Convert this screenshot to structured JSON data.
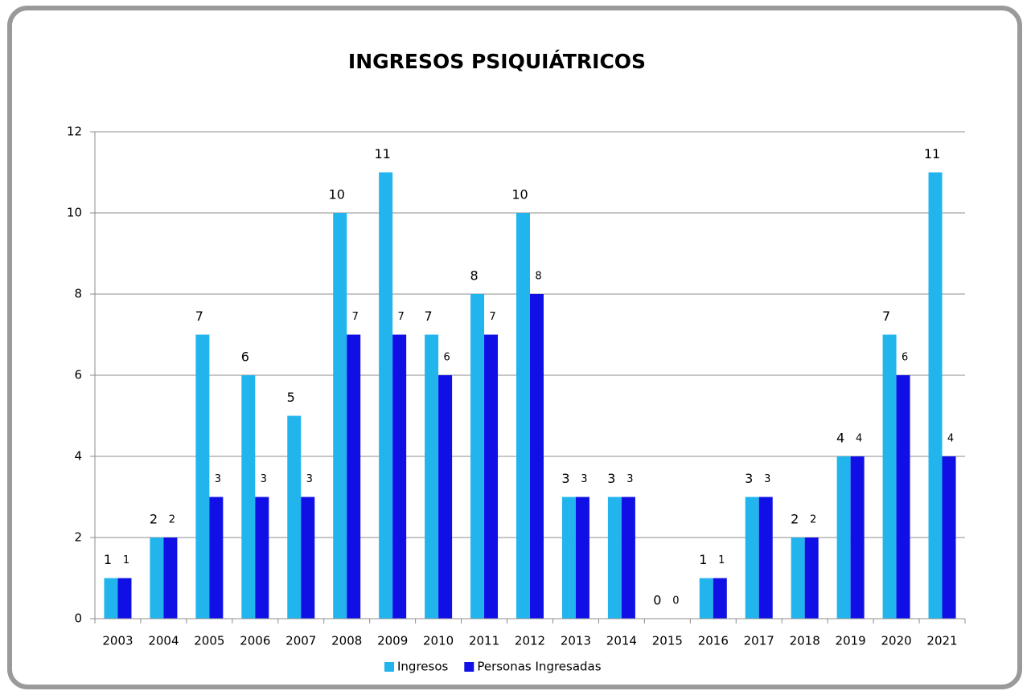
{
  "chart_data": {
    "type": "bar",
    "title": "INGRESOS PSIQUIÁTRICOS",
    "categories": [
      "2003",
      "2004",
      "2005",
      "2006",
      "2007",
      "2008",
      "2009",
      "2010",
      "2011",
      "2012",
      "2013",
      "2014",
      "2015",
      "2016",
      "2017",
      "2018",
      "2019",
      "2020",
      "2021"
    ],
    "series": [
      {
        "name": "Ingresos",
        "color": "#22b4ec",
        "values": [
          1,
          2,
          7,
          6,
          5,
          10,
          11,
          7,
          8,
          10,
          3,
          3,
          0,
          1,
          3,
          2,
          4,
          7,
          11
        ]
      },
      {
        "name": "Personas Ingresadas",
        "color": "#1010e6",
        "values": [
          1,
          2,
          3,
          3,
          3,
          7,
          7,
          6,
          7,
          8,
          3,
          3,
          0,
          1,
          3,
          2,
          4,
          6,
          4
        ]
      }
    ],
    "ylim": [
      0,
      12
    ],
    "yticks": [
      0,
      2,
      4,
      6,
      8,
      10,
      12
    ],
    "grid": true,
    "legend": "bottom"
  }
}
